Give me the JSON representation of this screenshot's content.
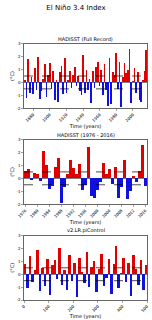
{
  "title": "El Niño 3.4 Index",
  "chart_data": [
    {
      "type": "bar",
      "title": "HADISST (Full Record)",
      "xlabel": "Time (years)",
      "ylabel": "(°C)",
      "color": "#e00000",
      "reference_lines": [
        -0.5,
        0.5
      ],
      "x": [
        1870,
        1872,
        1874,
        1876,
        1878,
        1880,
        1882,
        1884,
        1886,
        1888,
        1890,
        1892,
        1894,
        1896,
        1898,
        1900,
        1902,
        1904,
        1906,
        1908,
        1910,
        1912,
        1914,
        1916,
        1918,
        1920,
        1922,
        1924,
        1926,
        1928,
        1930,
        1932,
        1934,
        1936,
        1938,
        1940,
        1942,
        1944,
        1946,
        1948,
        1950,
        1952,
        1954,
        1956,
        1958,
        1960,
        1962,
        1964,
        1966,
        1968,
        1970,
        1972,
        1974,
        1976,
        1978,
        1980,
        1982,
        1984,
        1986,
        1988,
        1990,
        1992,
        1994,
        1996,
        1998,
        2000,
        2002,
        2004,
        2006,
        2008,
        2010,
        2012,
        2014,
        2016
      ],
      "values": [
        0.2,
        -1.2,
        1.8,
        -0.8,
        0.4,
        -0.9,
        1.1,
        -0.6,
        2.0,
        -1.3,
        -0.7,
        0.3,
        1.4,
        -1.1,
        0.6,
        1.5,
        -0.5,
        0.9,
        -1.4,
        0.2,
        -1.5,
        0.8,
        1.3,
        -0.9,
        1.9,
        -0.8,
        0.2,
        0.9,
        -0.4,
        0.6,
        1.2,
        -0.3,
        0.5,
        -0.7,
        -1.0,
        2.1,
        -0.8,
        1.0,
        -0.6,
        0.3,
        -1.6,
        0.9,
        -0.4,
        1.2,
        1.6,
        -0.3,
        1.0,
        -1.0,
        1.4,
        -0.6,
        -1.8,
        1.9,
        -1.7,
        0.8,
        0.6,
        2.3,
        -0.5,
        1.6,
        -1.9,
        0.4,
        1.5,
        0.7,
        1.0,
        2.6,
        -1.6,
        0.1,
        1.1,
        -0.8,
        0.8,
        -1.4,
        -1.5,
        0.2,
        0.9,
        2.5
      ],
      "xlim": [
        1869,
        2017
      ],
      "xticks": [
        1880,
        1900,
        1920,
        1940,
        1960,
        1980,
        2000
      ],
      "ylim": [
        -2,
        3
      ],
      "yticks": [
        -2,
        -1,
        0,
        1,
        2,
        3
      ]
    },
    {
      "type": "bar",
      "title": "HADISST (1976 - 2016)",
      "xlabel": "Time (years)",
      "ylabel": "(°C)",
      "color": "#e00000",
      "reference_lines": [
        -0.5,
        0.5
      ],
      "x": [
        1976,
        1977,
        1978,
        1979,
        1980,
        1981,
        1982,
        1983,
        1984,
        1985,
        1986,
        1987,
        1988,
        1989,
        1990,
        1991,
        1992,
        1993,
        1994,
        1995,
        1996,
        1997,
        1998,
        1999,
        2000,
        2001,
        2002,
        2003,
        2004,
        2005,
        2006,
        2007,
        2008,
        2009,
        2010,
        2011,
        2012,
        2013,
        2014,
        2015,
        2016
      ],
      "values": [
        0.6,
        0.7,
        -0.1,
        0.4,
        0.3,
        -0.2,
        2.1,
        1.0,
        -0.8,
        -0.6,
        0.9,
        1.6,
        -1.9,
        -0.7,
        0.3,
        1.4,
        0.8,
        0.3,
        1.1,
        -0.9,
        -0.5,
        2.4,
        -1.4,
        -1.5,
        -0.9,
        -0.3,
        1.2,
        0.3,
        0.7,
        -0.4,
        0.9,
        -1.5,
        -0.7,
        1.4,
        -1.6,
        -1.0,
        0.2,
        -0.3,
        0.6,
        2.6,
        -0.6
      ],
      "xlim": [
        1975.5,
        2016.5
      ],
      "xticks": [
        1976,
        1980,
        1984,
        1988,
        1992,
        1996,
        2000,
        2004,
        2008,
        2012,
        2016
      ],
      "ylim": [
        -2,
        3
      ],
      "yticks": [
        -2,
        -1,
        0,
        1,
        2,
        3
      ]
    },
    {
      "type": "bar",
      "title": "v2.LR.piControl",
      "xlabel": "Time (years)",
      "ylabel": "(°C)",
      "color": "#e00000",
      "reference_lines": [
        -0.5,
        0.5
      ],
      "x": [
        5,
        15,
        25,
        35,
        45,
        55,
        65,
        75,
        85,
        95,
        105,
        115,
        125,
        135,
        145,
        155,
        165,
        175,
        185,
        195,
        205,
        215,
        225,
        235,
        245,
        255,
        265,
        275,
        285,
        295,
        305,
        315,
        325,
        335,
        345,
        355,
        365,
        375,
        385,
        395,
        405,
        415,
        425,
        435,
        445,
        455,
        465,
        475,
        485,
        495
      ],
      "values": [
        0.8,
        -1.1,
        1.4,
        -0.6,
        0.3,
        1.9,
        -1.3,
        0.5,
        -0.9,
        1.2,
        -1.6,
        0.7,
        1.1,
        -0.4,
        2.0,
        -0.8,
        0.3,
        -1.2,
        1.5,
        -0.5,
        0.9,
        -1.8,
        1.3,
        0.2,
        -0.7,
        1.7,
        -1.0,
        0.6,
        1.0,
        -1.4,
        0.4,
        1.6,
        -0.9,
        -0.3,
        1.2,
        -1.5,
        0.8,
        2.2,
        -1.1,
        0.1,
        1.3,
        -0.6,
        0.9,
        -1.7,
        1.5,
        0.4,
        -0.8,
        1.1,
        -1.2,
        0.7
      ],
      "xlim": [
        0,
        500
      ],
      "xticks": [
        0,
        100,
        200,
        300,
        400,
        500
      ],
      "ylim": [
        -2,
        3
      ],
      "yticks": [
        -2,
        -1,
        0,
        1,
        2,
        3
      ]
    }
  ]
}
